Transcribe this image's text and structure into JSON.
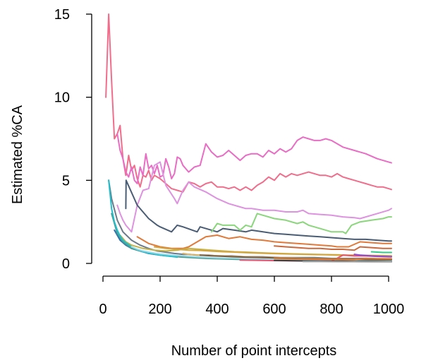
{
  "chart_data": {
    "type": "line",
    "title": "",
    "xlabel": "Number of point intercepts",
    "ylabel": "Estimated %CA",
    "xlim": [
      0,
      1100
    ],
    "ylim": [
      -0.4,
      15.4
    ],
    "xticks": [
      0,
      200,
      400,
      600,
      800,
      1000
    ],
    "yticks": [
      0,
      5,
      10,
      15
    ],
    "grid": false,
    "legend": "none",
    "series": [
      {
        "color": "#f06e8c",
        "x": [
          10,
          20,
          30,
          40,
          50,
          60,
          70,
          80,
          90,
          100,
          110,
          120,
          130,
          140,
          150,
          160,
          170,
          180,
          200,
          220,
          240,
          260,
          280,
          300,
          320,
          340,
          360,
          380,
          400,
          420,
          440,
          460,
          480,
          500,
          520,
          540,
          560,
          580,
          600,
          620,
          640,
          660,
          680,
          700,
          720,
          740,
          760,
          780,
          800,
          820,
          840,
          860,
          880,
          900,
          920,
          940,
          960,
          980,
          1000,
          1010
        ],
        "y": [
          10,
          15,
          11,
          7.5,
          7.8,
          8.3,
          6.3,
          5.3,
          6.5,
          5.6,
          5.9,
          5.1,
          4.6,
          5.3,
          5.2,
          5.6,
          5.0,
          5.3,
          5.1,
          4.8,
          4.5,
          4.4,
          4.3,
          4.9,
          4.8,
          4.6,
          4.8,
          4.9,
          4.6,
          4.6,
          4.5,
          4.6,
          4.4,
          4.6,
          4.4,
          4.7,
          4.9,
          5.2,
          5.0,
          5.4,
          5.2,
          5.4,
          5.3,
          5.4,
          5.5,
          5.4,
          5.3,
          5.3,
          5.2,
          5.4,
          5.2,
          5.1,
          5.0,
          4.9,
          4.8,
          4.7,
          4.6,
          4.6,
          4.5,
          4.45
        ]
      },
      {
        "color": "#e96dc4",
        "x": [
          50,
          60,
          70,
          80,
          90,
          100,
          110,
          120,
          130,
          140,
          150,
          160,
          170,
          180,
          190,
          200,
          210,
          220,
          230,
          240,
          250,
          260,
          270,
          280,
          300,
          320,
          340,
          360,
          380,
          400,
          420,
          440,
          460,
          480,
          500,
          520,
          540,
          560,
          580,
          600,
          620,
          640,
          660,
          680,
          700,
          720,
          740,
          760,
          780,
          800,
          840,
          880,
          920,
          960,
          1000,
          1010
        ],
        "y": [
          7.8,
          6.8,
          6.3,
          5.5,
          5.2,
          5.8,
          5.0,
          4.8,
          5.8,
          5.3,
          6.6,
          5.7,
          5.9,
          5.4,
          5.9,
          5.2,
          5.3,
          6.3,
          5.8,
          5.1,
          5.4,
          6.4,
          6.3,
          5.9,
          5.5,
          5.8,
          5.9,
          7.2,
          6.7,
          6.4,
          6.5,
          6.8,
          6.5,
          6.2,
          6.5,
          6.6,
          6.6,
          6.4,
          6.8,
          6.6,
          6.9,
          6.7,
          6.9,
          7.4,
          7.6,
          7.5,
          7.4,
          7.4,
          7.5,
          7.4,
          7.0,
          6.8,
          6.6,
          6.3,
          6.1,
          6.05
        ]
      },
      {
        "color": "#dd93df",
        "x": [
          50,
          60,
          70,
          80,
          100,
          120,
          140,
          160,
          180,
          200,
          220,
          250,
          260,
          280,
          300,
          320,
          360,
          400,
          440,
          480,
          500,
          520,
          560,
          600,
          640,
          680,
          700,
          720,
          760,
          800,
          840,
          880,
          900,
          960,
          1000,
          1010
        ],
        "y": [
          3.5,
          3.0,
          2.6,
          2.3,
          1.9,
          3.5,
          4.4,
          4.5,
          5.9,
          6.1,
          4.7,
          3.9,
          3.6,
          4.4,
          4.9,
          4.6,
          4.3,
          3.9,
          3.6,
          3.4,
          3.3,
          3.3,
          3.2,
          3.2,
          3.1,
          3.1,
          3.2,
          3.0,
          2.95,
          2.9,
          2.8,
          2.75,
          2.7,
          3.0,
          3.2,
          3.3
        ]
      },
      {
        "color": "#6c7a89",
        "x": [
          20,
          30,
          50,
          70,
          100,
          130,
          160,
          190,
          210,
          230,
          250,
          280,
          300,
          330,
          370,
          400,
          450,
          500,
          560,
          620,
          680,
          740,
          800,
          860,
          920,
          1000,
          1010
        ],
        "y": [
          5.0,
          3.9,
          2.6,
          1.9,
          1.4,
          1.1,
          0.9,
          0.75,
          0.7,
          0.65,
          0.6,
          0.55,
          0.55,
          0.5,
          0.5,
          0.45,
          0.45,
          0.4,
          0.4,
          0.35,
          0.35,
          0.35,
          0.3,
          0.3,
          0.3,
          0.25,
          0.25
        ]
      },
      {
        "color": "#4a5d74",
        "x": [
          80,
          81,
          120,
          160,
          190,
          200,
          240,
          260,
          280,
          330,
          340,
          360,
          400,
          420,
          460,
          500,
          520,
          560,
          600,
          640,
          680,
          720,
          760,
          800,
          840,
          880,
          920,
          960,
          1000,
          1010
        ],
        "y": [
          3.3,
          5.0,
          3.5,
          2.7,
          2.3,
          2.2,
          1.9,
          2.3,
          2.2,
          1.9,
          2.2,
          2.1,
          1.9,
          2.1,
          2.0,
          1.9,
          2.0,
          1.9,
          1.8,
          1.75,
          1.7,
          1.65,
          1.6,
          1.55,
          1.5,
          1.45,
          1.45,
          1.4,
          1.35,
          1.35
        ]
      },
      {
        "color": "#8bd67c",
        "x": [
          380,
          400,
          420,
          460,
          480,
          500,
          520,
          540,
          560,
          600,
          640,
          680,
          700,
          720,
          760,
          800,
          840,
          850,
          870,
          900,
          940,
          980,
          1000,
          1010
        ],
        "y": [
          1.9,
          2.4,
          2.3,
          2.3,
          2.0,
          2.3,
          2.2,
          3.0,
          2.9,
          2.7,
          2.6,
          2.4,
          2.5,
          2.3,
          2.1,
          1.9,
          1.9,
          1.8,
          2.3,
          2.5,
          2.6,
          2.7,
          2.8,
          2.8
        ]
      },
      {
        "color": "#e07a3a",
        "x": [
          120,
          160,
          200,
          240,
          280,
          300,
          320,
          360,
          400,
          440,
          480,
          520,
          560,
          600,
          640,
          680,
          720,
          760,
          800,
          820,
          860,
          900,
          940,
          980,
          1010
        ],
        "y": [
          1.6,
          1.2,
          1.0,
          0.9,
          0.9,
          1.0,
          1.2,
          1.6,
          1.7,
          1.5,
          1.6,
          1.45,
          1.4,
          1.3,
          1.25,
          1.2,
          1.15,
          1.1,
          1.05,
          1.0,
          1.0,
          1.3,
          1.25,
          1.2,
          1.2
        ]
      },
      {
        "color": "#c86a3d",
        "x": [
          600,
          640,
          680,
          720,
          760,
          800,
          840,
          880,
          900,
          940,
          980,
          1000,
          1010
        ],
        "y": [
          1.05,
          1.0,
          0.95,
          0.9,
          0.9,
          0.85,
          0.85,
          0.8,
          1.0,
          0.95,
          0.9,
          0.9,
          0.9
        ]
      },
      {
        "color": "#c4b24a",
        "x": [
          60,
          80,
          100,
          140,
          180,
          220,
          260,
          300,
          340,
          380,
          420,
          460,
          500,
          540,
          580,
          620,
          660,
          700,
          740,
          780,
          820,
          860,
          900,
          940,
          980,
          1010
        ],
        "y": [
          1.7,
          1.3,
          1.1,
          0.9,
          0.8,
          0.75,
          0.8,
          0.9,
          0.85,
          0.8,
          0.75,
          0.7,
          0.68,
          0.65,
          0.62,
          0.6,
          0.58,
          0.56,
          0.55,
          0.53,
          0.52,
          0.5,
          0.5,
          0.48,
          0.47,
          0.46
        ]
      },
      {
        "color": "#d4a53c",
        "x": [
          180,
          220,
          260,
          300,
          340,
          380,
          420,
          460,
          500,
          540,
          580,
          620,
          660,
          700,
          740,
          780,
          820,
          860,
          900,
          940,
          980,
          1010
        ],
        "y": [
          1.0,
          0.9,
          0.85,
          0.8,
          0.78,
          0.74,
          0.7,
          0.68,
          0.65,
          0.62,
          0.6,
          0.58,
          0.56,
          0.55,
          0.53,
          0.52,
          0.5,
          0.49,
          0.48,
          0.47,
          0.46,
          0.45
        ]
      },
      {
        "color": "#2b6fb4",
        "x": [
          40,
          60,
          80,
          100,
          130,
          160,
          200,
          240,
          280,
          320,
          360,
          400,
          440,
          480,
          520,
          560,
          600,
          660,
          720,
          780,
          840,
          900,
          960,
          1010
        ],
        "y": [
          2.0,
          1.4,
          1.1,
          0.9,
          0.75,
          0.6,
          0.5,
          0.45,
          0.4,
          0.36,
          0.33,
          0.3,
          0.28,
          0.26,
          0.25,
          0.24,
          0.22,
          0.2,
          0.19,
          0.18,
          0.17,
          0.16,
          0.15,
          0.15
        ]
      },
      {
        "color": "#4c9a8e",
        "x": [
          30,
          50,
          70,
          100,
          130,
          160,
          200,
          240,
          280,
          320,
          360,
          400,
          460,
          520,
          580,
          640,
          700,
          760,
          820,
          880,
          940,
          1010
        ],
        "y": [
          3.0,
          1.8,
          1.3,
          0.9,
          0.75,
          0.62,
          0.5,
          0.43,
          0.38,
          0.34,
          0.3,
          0.28,
          0.25,
          0.22,
          0.2,
          0.18,
          0.17,
          0.15,
          0.14,
          0.13,
          0.12,
          0.11
        ]
      },
      {
        "color": "#22bfcc",
        "x": [
          20,
          30,
          40,
          50,
          60,
          70,
          80,
          100,
          120,
          140,
          160,
          180,
          200,
          220,
          240,
          260
        ],
        "y": [
          5.0,
          3.3,
          2.5,
          2.0,
          1.65,
          1.4,
          1.25,
          1.0,
          0.83,
          0.71,
          0.62,
          0.56,
          0.5,
          0.46,
          0.42,
          0.38
        ]
      },
      {
        "color": "#97d8e6",
        "x": [
          100,
          120,
          140,
          160,
          180,
          200,
          240,
          280,
          320,
          360,
          400,
          460,
          520,
          580,
          640,
          700,
          760,
          820,
          880,
          940,
          1010
        ],
        "y": [
          1.0,
          0.85,
          0.75,
          0.68,
          0.62,
          0.57,
          0.5,
          0.45,
          0.4,
          0.36,
          0.33,
          0.3,
          0.27,
          0.24,
          0.22,
          0.2,
          0.19,
          0.18,
          0.17,
          0.16,
          0.15
        ]
      },
      {
        "color": "#e8536f",
        "x": [
          480,
          520,
          560,
          600,
          640,
          680,
          720,
          760,
          780,
          800,
          840,
          880,
          920,
          960,
          1000,
          1010
        ],
        "y": [
          0.2,
          0.19,
          0.18,
          0.17,
          0.16,
          0.15,
          0.15,
          0.14,
          0.14,
          0.13,
          0.5,
          0.45,
          0.45,
          0.42,
          0.4,
          0.4
        ]
      },
      {
        "color": "#8a4bd1",
        "x": [
          880,
          900,
          940,
          980,
          1010
        ],
        "y": [
          0.55,
          0.5,
          0.45,
          0.42,
          0.4
        ]
      },
      {
        "color": "#35c98a",
        "x": [
          940,
          960,
          980,
          1010
        ],
        "y": [
          0.7,
          0.68,
          0.66,
          0.66
        ]
      },
      {
        "color": "#d9b36a",
        "x": [
          280,
          300,
          340,
          380,
          420,
          460,
          500,
          540,
          580,
          620,
          660,
          700,
          740,
          780,
          820,
          860,
          900,
          940,
          980,
          1010
        ],
        "y": [
          0.6,
          0.55,
          0.5,
          0.47,
          0.45,
          0.42,
          0.4,
          0.38,
          0.36,
          0.34,
          0.33,
          0.31,
          0.3,
          0.29,
          0.28,
          0.27,
          0.26,
          0.25,
          0.25,
          0.24
        ]
      },
      {
        "color": "#7a5a3c",
        "x": [
          340,
          380,
          420,
          460,
          500,
          540,
          580,
          620,
          660,
          700,
          740,
          780,
          820,
          860,
          900,
          940,
          980,
          1010
        ],
        "y": [
          0.5,
          0.46,
          0.43,
          0.4,
          0.38,
          0.36,
          0.34,
          0.32,
          0.3,
          0.29,
          0.28,
          0.27,
          0.26,
          0.25,
          0.24,
          0.23,
          0.22,
          0.22
        ]
      },
      {
        "color": "#e0742e",
        "x": [
          600,
          640,
          680,
          720,
          760,
          800,
          840,
          880,
          920,
          960,
          1000,
          1010
        ],
        "y": [
          0.3,
          0.28,
          0.27,
          0.26,
          0.25,
          0.24,
          0.23,
          0.22,
          0.3,
          0.29,
          0.28,
          0.28
        ]
      },
      {
        "color": "#3e3e3e",
        "x": [
          600,
          640,
          680,
          720,
          760,
          800,
          840,
          880,
          920,
          960,
          1000,
          1010
        ],
        "y": [
          0.18,
          0.17,
          0.16,
          0.15,
          0.14,
          0.13,
          0.13,
          0.12,
          0.12,
          0.11,
          0.1,
          0.1
        ]
      },
      {
        "color": "#b7b7b7",
        "x": [
          700,
          760,
          820,
          880,
          940,
          1010
        ],
        "y": [
          0.1,
          0.1,
          0.09,
          0.09,
          0.08,
          0.08
        ]
      }
    ]
  }
}
